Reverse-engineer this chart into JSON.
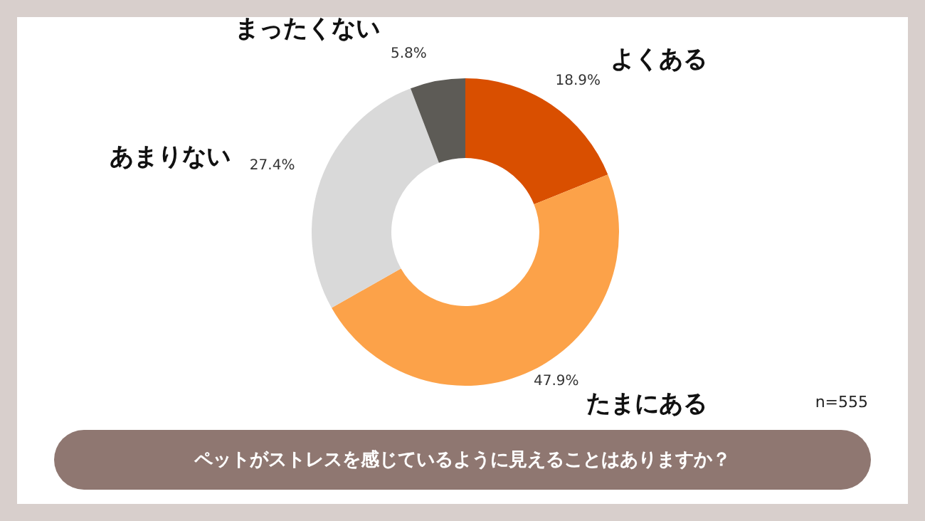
{
  "chart_data": {
    "type": "donut",
    "title": "ペットがストレスを感じているように見えることはありますか？",
    "categories": [
      "よくある",
      "たまにある",
      "あまりない",
      "まったくない"
    ],
    "values": [
      18.9,
      47.9,
      27.4,
      5.8
    ],
    "value_labels": [
      "18.9%",
      "47.9%",
      "27.4%",
      "5.8%"
    ],
    "colors": [
      "#d94f00",
      "#fca249",
      "#d9d9d9",
      "#5d5b56"
    ],
    "legend": false,
    "annotations": [
      "n=555"
    ]
  }
}
